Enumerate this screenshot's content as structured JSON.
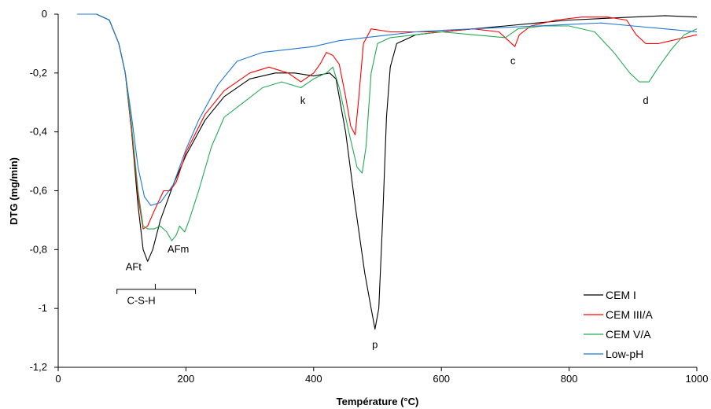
{
  "chart_data": {
    "type": "line",
    "title": "",
    "xlabel": "Température (°C)",
    "ylabel": "DTG (mg/min)",
    "xlim": [
      0,
      1000
    ],
    "ylim": [
      -1.2,
      0
    ],
    "xticks": [
      0,
      200,
      400,
      600,
      800,
      1000
    ],
    "xtick_labels": [
      "0",
      "200",
      "400",
      "600",
      "800",
      "1000"
    ],
    "yticks": [
      0,
      -0.2,
      -0.4,
      -0.6,
      -0.8,
      -1,
      -1.2
    ],
    "ytick_labels": [
      "0",
      "-0,2",
      "-0,4",
      "-0,6",
      "-0,8",
      "-1",
      "-1,2"
    ],
    "grid": false,
    "legend_position": "bottom-right",
    "series": [
      {
        "name": "CEM I",
        "color": "#000000",
        "points": [
          [
            30,
            0
          ],
          [
            60,
            0
          ],
          [
            80,
            -0.02
          ],
          [
            95,
            -0.1
          ],
          [
            105,
            -0.2
          ],
          [
            115,
            -0.4
          ],
          [
            125,
            -0.65
          ],
          [
            133,
            -0.8
          ],
          [
            140,
            -0.84
          ],
          [
            148,
            -0.8
          ],
          [
            160,
            -0.7
          ],
          [
            180,
            -0.58
          ],
          [
            200,
            -0.48
          ],
          [
            230,
            -0.36
          ],
          [
            260,
            -0.28
          ],
          [
            300,
            -0.22
          ],
          [
            340,
            -0.2
          ],
          [
            370,
            -0.2
          ],
          [
            400,
            -0.21
          ],
          [
            425,
            -0.2
          ],
          [
            435,
            -0.22
          ],
          [
            450,
            -0.4
          ],
          [
            465,
            -0.65
          ],
          [
            480,
            -0.88
          ],
          [
            490,
            -1.0
          ],
          [
            496,
            -1.07
          ],
          [
            502,
            -1.0
          ],
          [
            508,
            -0.7
          ],
          [
            514,
            -0.35
          ],
          [
            520,
            -0.18
          ],
          [
            530,
            -0.1
          ],
          [
            560,
            -0.07
          ],
          [
            600,
            -0.06
          ],
          [
            650,
            -0.05
          ],
          [
            700,
            -0.04
          ],
          [
            750,
            -0.03
          ],
          [
            800,
            -0.02
          ],
          [
            850,
            -0.015
          ],
          [
            900,
            -0.01
          ],
          [
            950,
            -0.005
          ],
          [
            1000,
            -0.01
          ]
        ]
      },
      {
        "name": "CEM III/A",
        "color": "#ff0000",
        "points": [
          [
            30,
            0
          ],
          [
            60,
            0
          ],
          [
            80,
            -0.02
          ],
          [
            95,
            -0.1
          ],
          [
            105,
            -0.2
          ],
          [
            115,
            -0.4
          ],
          [
            125,
            -0.62
          ],
          [
            133,
            -0.73
          ],
          [
            140,
            -0.72
          ],
          [
            150,
            -0.67
          ],
          [
            165,
            -0.6
          ],
          [
            175,
            -0.6
          ],
          [
            185,
            -0.57
          ],
          [
            200,
            -0.47
          ],
          [
            230,
            -0.34
          ],
          [
            260,
            -0.26
          ],
          [
            300,
            -0.2
          ],
          [
            330,
            -0.18
          ],
          [
            360,
            -0.2
          ],
          [
            380,
            -0.23
          ],
          [
            400,
            -0.2
          ],
          [
            410,
            -0.17
          ],
          [
            420,
            -0.13
          ],
          [
            430,
            -0.14
          ],
          [
            440,
            -0.17
          ],
          [
            450,
            -0.28
          ],
          [
            458,
            -0.38
          ],
          [
            465,
            -0.41
          ],
          [
            470,
            -0.3
          ],
          [
            478,
            -0.1
          ],
          [
            490,
            -0.05
          ],
          [
            520,
            -0.06
          ],
          [
            560,
            -0.06
          ],
          [
            600,
            -0.06
          ],
          [
            650,
            -0.05
          ],
          [
            690,
            -0.06
          ],
          [
            705,
            -0.09
          ],
          [
            715,
            -0.11
          ],
          [
            722,
            -0.07
          ],
          [
            740,
            -0.04
          ],
          [
            780,
            -0.02
          ],
          [
            820,
            -0.01
          ],
          [
            860,
            -0.01
          ],
          [
            890,
            -0.02
          ],
          [
            905,
            -0.07
          ],
          [
            920,
            -0.1
          ],
          [
            940,
            -0.1
          ],
          [
            960,
            -0.09
          ],
          [
            980,
            -0.08
          ],
          [
            1000,
            -0.07
          ]
        ]
      },
      {
        "name": "CEM V/A",
        "color": "#22aa55",
        "points": [
          [
            30,
            0
          ],
          [
            60,
            0
          ],
          [
            80,
            -0.02
          ],
          [
            95,
            -0.1
          ],
          [
            105,
            -0.2
          ],
          [
            115,
            -0.38
          ],
          [
            125,
            -0.6
          ],
          [
            133,
            -0.72
          ],
          [
            140,
            -0.73
          ],
          [
            150,
            -0.73
          ],
          [
            160,
            -0.72
          ],
          [
            170,
            -0.74
          ],
          [
            178,
            -0.77
          ],
          [
            185,
            -0.75
          ],
          [
            190,
            -0.72
          ],
          [
            198,
            -0.74
          ],
          [
            205,
            -0.7
          ],
          [
            220,
            -0.6
          ],
          [
            240,
            -0.45
          ],
          [
            260,
            -0.35
          ],
          [
            290,
            -0.3
          ],
          [
            320,
            -0.25
          ],
          [
            350,
            -0.23
          ],
          [
            380,
            -0.25
          ],
          [
            400,
            -0.22
          ],
          [
            420,
            -0.2
          ],
          [
            430,
            -0.18
          ],
          [
            440,
            -0.25
          ],
          [
            455,
            -0.4
          ],
          [
            468,
            -0.52
          ],
          [
            476,
            -0.54
          ],
          [
            482,
            -0.45
          ],
          [
            490,
            -0.2
          ],
          [
            500,
            -0.1
          ],
          [
            520,
            -0.08
          ],
          [
            560,
            -0.07
          ],
          [
            600,
            -0.06
          ],
          [
            650,
            -0.07
          ],
          [
            700,
            -0.08
          ],
          [
            720,
            -0.05
          ],
          [
            760,
            -0.04
          ],
          [
            800,
            -0.04
          ],
          [
            840,
            -0.06
          ],
          [
            870,
            -0.13
          ],
          [
            895,
            -0.2
          ],
          [
            910,
            -0.23
          ],
          [
            925,
            -0.23
          ],
          [
            940,
            -0.18
          ],
          [
            960,
            -0.12
          ],
          [
            980,
            -0.07
          ],
          [
            1000,
            -0.05
          ]
        ]
      },
      {
        "name": "Low-pH",
        "color": "#1f77d4",
        "points": [
          [
            30,
            0
          ],
          [
            60,
            0
          ],
          [
            80,
            -0.02
          ],
          [
            95,
            -0.1
          ],
          [
            105,
            -0.2
          ],
          [
            115,
            -0.35
          ],
          [
            125,
            -0.52
          ],
          [
            135,
            -0.62
          ],
          [
            145,
            -0.65
          ],
          [
            160,
            -0.64
          ],
          [
            180,
            -0.58
          ],
          [
            200,
            -0.46
          ],
          [
            220,
            -0.36
          ],
          [
            250,
            -0.24
          ],
          [
            280,
            -0.16
          ],
          [
            320,
            -0.13
          ],
          [
            360,
            -0.12
          ],
          [
            400,
            -0.11
          ],
          [
            440,
            -0.09
          ],
          [
            480,
            -0.08
          ],
          [
            520,
            -0.07
          ],
          [
            560,
            -0.06
          ],
          [
            600,
            -0.055
          ],
          [
            650,
            -0.05
          ],
          [
            700,
            -0.045
          ],
          [
            750,
            -0.04
          ],
          [
            800,
            -0.035
          ],
          [
            850,
            -0.03
          ],
          [
            900,
            -0.04
          ],
          [
            950,
            -0.05
          ],
          [
            1000,
            -0.06
          ]
        ]
      }
    ],
    "annotations": [
      {
        "text": "AFt",
        "x": 118,
        "y": -0.87
      },
      {
        "text": "AFm",
        "x": 188,
        "y": -0.81
      },
      {
        "text": "C-S-H",
        "x": 130,
        "y": -0.985
      },
      {
        "text": "k",
        "x": 383,
        "y": -0.305
      },
      {
        "text": "p",
        "x": 496,
        "y": -1.135
      },
      {
        "text": "c",
        "x": 712,
        "y": -0.17
      },
      {
        "text": "d",
        "x": 920,
        "y": -0.305
      }
    ],
    "bracket": {
      "x_start": 92,
      "x_end": 215,
      "x_mid": 152,
      "y": -0.935
    }
  }
}
